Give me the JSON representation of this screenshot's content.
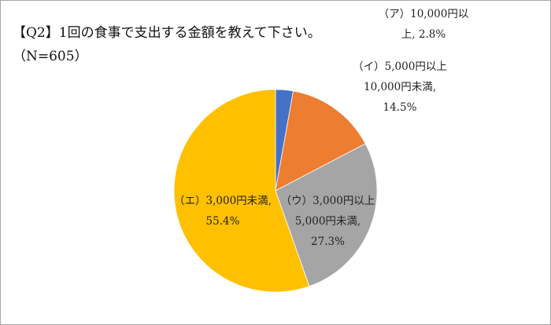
{
  "chart_data": {
    "type": "pie",
    "title": "【Q2】1回の食事で支出する金額を教えて下さい。",
    "subtitle": "（N=605）",
    "unit": "%",
    "start_angle_deg": 0,
    "direction": "clockwise",
    "categories": [
      "（ア）10,000円以上",
      "（イ）5,000円以上10,000円未満",
      "（ウ）3,000円以上5,000円未満",
      "（エ）3,000円未満"
    ],
    "values": [
      2.8,
      14.5,
      27.3,
      55.4
    ],
    "colors": [
      "#4472C4",
      "#ED7D31",
      "#A5A5A5",
      "#FFC000"
    ],
    "legend": "none (data labels)",
    "data_labels": [
      {
        "line1": "（ア）10,000円以",
        "line2": "上, 2.8%",
        "line3": ""
      },
      {
        "line1": "（イ）5,000円以上",
        "line2": "10,000円未満,",
        "line3": "14.5%"
      },
      {
        "line1": "（ウ）3,000円以上",
        "line2": "5,000円未満,",
        "line3": "27.3%"
      },
      {
        "line1": "（エ）3,000円未満,",
        "line2": "55.4%",
        "line3": ""
      }
    ]
  }
}
